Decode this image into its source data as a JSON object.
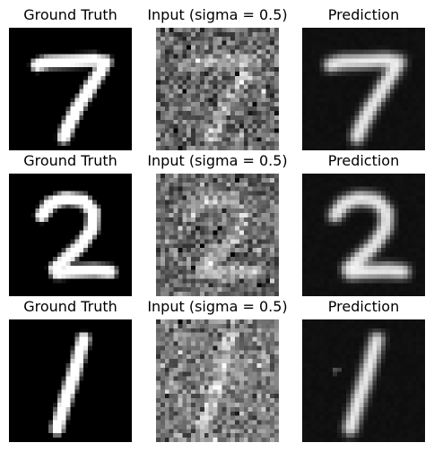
{
  "columns": [
    "ground_truth",
    "input",
    "prediction"
  ],
  "titles": {
    "ground_truth": "Ground Truth",
    "input": "Input (sigma = 0.5)",
    "prediction": "Prediction"
  },
  "rows": [
    {
      "digit": "7"
    },
    {
      "digit": "2"
    },
    {
      "digit": "1"
    }
  ],
  "noise_sigma": 0.5,
  "colormap": "gray"
}
